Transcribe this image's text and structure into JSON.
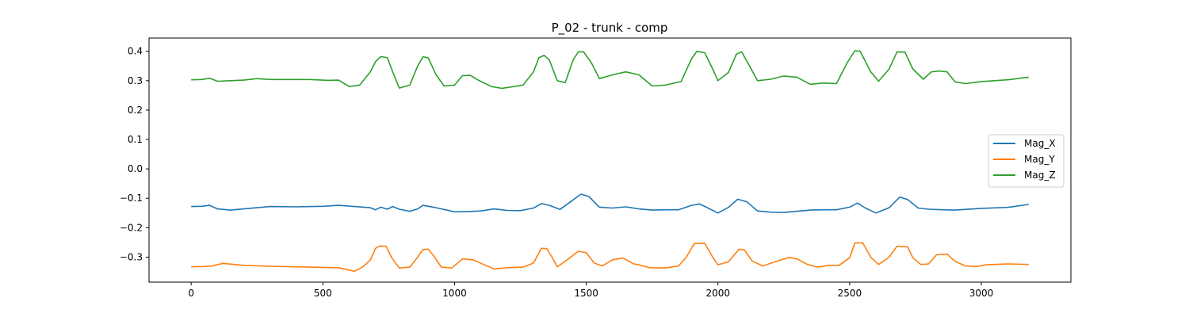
{
  "chart_data": {
    "type": "line",
    "title": "P_02 - trunk - comp",
    "xlabel": "",
    "ylabel": "",
    "xlim": [
      -160,
      3340
    ],
    "ylim": [
      -0.385,
      0.445
    ],
    "x_ticks": [
      0,
      500,
      1000,
      1500,
      2000,
      2500,
      3000
    ],
    "x_tick_labels": [
      "0",
      "500",
      "1000",
      "1500",
      "2000",
      "2500",
      "3000"
    ],
    "y_ticks": [
      -0.3,
      -0.2,
      -0.1,
      0.0,
      0.1,
      0.2,
      0.3,
      0.4
    ],
    "y_tick_labels": [
      "−0.3",
      "−0.2",
      "−0.1",
      "0.0",
      "0.1",
      "0.2",
      "0.3",
      "0.4"
    ],
    "grid": false,
    "legend_position": "center-right",
    "series": [
      {
        "name": "Mag_X",
        "color": "#1f77b4",
        "points": [
          [
            0,
            -0.128
          ],
          [
            40,
            -0.127
          ],
          [
            70,
            -0.124
          ],
          [
            100,
            -0.136
          ],
          [
            150,
            -0.14
          ],
          [
            200,
            -0.136
          ],
          [
            300,
            -0.128
          ],
          [
            400,
            -0.129
          ],
          [
            500,
            -0.127
          ],
          [
            560,
            -0.124
          ],
          [
            620,
            -0.128
          ],
          [
            680,
            -0.132
          ],
          [
            700,
            -0.139
          ],
          [
            720,
            -0.13
          ],
          [
            745,
            -0.137
          ],
          [
            765,
            -0.128
          ],
          [
            790,
            -0.137
          ],
          [
            830,
            -0.144
          ],
          [
            860,
            -0.136
          ],
          [
            880,
            -0.124
          ],
          [
            920,
            -0.13
          ],
          [
            1000,
            -0.146
          ],
          [
            1050,
            -0.145
          ],
          [
            1100,
            -0.143
          ],
          [
            1150,
            -0.136
          ],
          [
            1200,
            -0.141
          ],
          [
            1250,
            -0.142
          ],
          [
            1300,
            -0.133
          ],
          [
            1330,
            -0.118
          ],
          [
            1360,
            -0.124
          ],
          [
            1400,
            -0.138
          ],
          [
            1440,
            -0.112
          ],
          [
            1480,
            -0.086
          ],
          [
            1510,
            -0.094
          ],
          [
            1550,
            -0.13
          ],
          [
            1600,
            -0.133
          ],
          [
            1650,
            -0.129
          ],
          [
            1700,
            -0.136
          ],
          [
            1750,
            -0.14
          ],
          [
            1800,
            -0.139
          ],
          [
            1850,
            -0.139
          ],
          [
            1900,
            -0.124
          ],
          [
            1930,
            -0.119
          ],
          [
            1960,
            -0.132
          ],
          [
            2000,
            -0.15
          ],
          [
            2040,
            -0.131
          ],
          [
            2075,
            -0.103
          ],
          [
            2110,
            -0.112
          ],
          [
            2150,
            -0.143
          ],
          [
            2200,
            -0.147
          ],
          [
            2250,
            -0.148
          ],
          [
            2300,
            -0.144
          ],
          [
            2350,
            -0.14
          ],
          [
            2400,
            -0.139
          ],
          [
            2450,
            -0.139
          ],
          [
            2500,
            -0.13
          ],
          [
            2530,
            -0.116
          ],
          [
            2560,
            -0.133
          ],
          [
            2600,
            -0.15
          ],
          [
            2650,
            -0.132
          ],
          [
            2690,
            -0.096
          ],
          [
            2720,
            -0.104
          ],
          [
            2760,
            -0.133
          ],
          [
            2800,
            -0.137
          ],
          [
            2850,
            -0.139
          ],
          [
            2900,
            -0.14
          ],
          [
            3000,
            -0.134
          ],
          [
            3100,
            -0.131
          ],
          [
            3180,
            -0.121
          ]
        ]
      },
      {
        "name": "Mag_Y",
        "color": "#ff7f0e",
        "points": [
          [
            0,
            -0.333
          ],
          [
            50,
            -0.332
          ],
          [
            80,
            -0.33
          ],
          [
            120,
            -0.321
          ],
          [
            200,
            -0.328
          ],
          [
            300,
            -0.331
          ],
          [
            400,
            -0.333
          ],
          [
            500,
            -0.335
          ],
          [
            560,
            -0.336
          ],
          [
            620,
            -0.348
          ],
          [
            650,
            -0.334
          ],
          [
            680,
            -0.31
          ],
          [
            700,
            -0.27
          ],
          [
            715,
            -0.262
          ],
          [
            740,
            -0.263
          ],
          [
            760,
            -0.3
          ],
          [
            790,
            -0.337
          ],
          [
            830,
            -0.334
          ],
          [
            860,
            -0.3
          ],
          [
            880,
            -0.274
          ],
          [
            900,
            -0.273
          ],
          [
            920,
            -0.295
          ],
          [
            950,
            -0.334
          ],
          [
            990,
            -0.337
          ],
          [
            1030,
            -0.306
          ],
          [
            1070,
            -0.309
          ],
          [
            1110,
            -0.325
          ],
          [
            1150,
            -0.34
          ],
          [
            1200,
            -0.336
          ],
          [
            1260,
            -0.334
          ],
          [
            1300,
            -0.32
          ],
          [
            1330,
            -0.27
          ],
          [
            1350,
            -0.271
          ],
          [
            1370,
            -0.3
          ],
          [
            1390,
            -0.333
          ],
          [
            1430,
            -0.308
          ],
          [
            1470,
            -0.28
          ],
          [
            1500,
            -0.285
          ],
          [
            1530,
            -0.32
          ],
          [
            1560,
            -0.33
          ],
          [
            1600,
            -0.309
          ],
          [
            1640,
            -0.303
          ],
          [
            1680,
            -0.323
          ],
          [
            1700,
            -0.326
          ],
          [
            1740,
            -0.336
          ],
          [
            1800,
            -0.337
          ],
          [
            1850,
            -0.33
          ],
          [
            1880,
            -0.3
          ],
          [
            1910,
            -0.254
          ],
          [
            1950,
            -0.253
          ],
          [
            1980,
            -0.3
          ],
          [
            2000,
            -0.326
          ],
          [
            2040,
            -0.316
          ],
          [
            2080,
            -0.273
          ],
          [
            2100,
            -0.275
          ],
          [
            2130,
            -0.313
          ],
          [
            2170,
            -0.33
          ],
          [
            2220,
            -0.315
          ],
          [
            2270,
            -0.301
          ],
          [
            2300,
            -0.306
          ],
          [
            2340,
            -0.325
          ],
          [
            2380,
            -0.334
          ],
          [
            2420,
            -0.328
          ],
          [
            2460,
            -0.328
          ],
          [
            2500,
            -0.302
          ],
          [
            2520,
            -0.252
          ],
          [
            2550,
            -0.252
          ],
          [
            2580,
            -0.3
          ],
          [
            2610,
            -0.325
          ],
          [
            2650,
            -0.3
          ],
          [
            2680,
            -0.263
          ],
          [
            2720,
            -0.265
          ],
          [
            2740,
            -0.302
          ],
          [
            2770,
            -0.325
          ],
          [
            2800,
            -0.323
          ],
          [
            2830,
            -0.292
          ],
          [
            2870,
            -0.29
          ],
          [
            2900,
            -0.314
          ],
          [
            2940,
            -0.33
          ],
          [
            2980,
            -0.332
          ],
          [
            3020,
            -0.326
          ],
          [
            3100,
            -0.323
          ],
          [
            3180,
            -0.325
          ]
        ]
      },
      {
        "name": "Mag_Z",
        "color": "#2ca02c",
        "points": [
          [
            0,
            0.303
          ],
          [
            40,
            0.304
          ],
          [
            70,
            0.308
          ],
          [
            100,
            0.298
          ],
          [
            150,
            0.3
          ],
          [
            200,
            0.302
          ],
          [
            250,
            0.307
          ],
          [
            300,
            0.304
          ],
          [
            350,
            0.304
          ],
          [
            450,
            0.304
          ],
          [
            520,
            0.301
          ],
          [
            560,
            0.302
          ],
          [
            600,
            0.28
          ],
          [
            640,
            0.285
          ],
          [
            680,
            0.33
          ],
          [
            700,
            0.365
          ],
          [
            720,
            0.382
          ],
          [
            745,
            0.378
          ],
          [
            765,
            0.33
          ],
          [
            790,
            0.275
          ],
          [
            830,
            0.285
          ],
          [
            860,
            0.35
          ],
          [
            880,
            0.381
          ],
          [
            900,
            0.378
          ],
          [
            930,
            0.32
          ],
          [
            960,
            0.282
          ],
          [
            1000,
            0.285
          ],
          [
            1030,
            0.317
          ],
          [
            1060,
            0.318
          ],
          [
            1090,
            0.302
          ],
          [
            1140,
            0.28
          ],
          [
            1180,
            0.274
          ],
          [
            1260,
            0.285
          ],
          [
            1300,
            0.33
          ],
          [
            1320,
            0.378
          ],
          [
            1340,
            0.386
          ],
          [
            1360,
            0.37
          ],
          [
            1390,
            0.3
          ],
          [
            1420,
            0.293
          ],
          [
            1450,
            0.37
          ],
          [
            1470,
            0.398
          ],
          [
            1490,
            0.398
          ],
          [
            1520,
            0.36
          ],
          [
            1550,
            0.307
          ],
          [
            1600,
            0.32
          ],
          [
            1650,
            0.33
          ],
          [
            1700,
            0.32
          ],
          [
            1750,
            0.282
          ],
          [
            1800,
            0.285
          ],
          [
            1860,
            0.297
          ],
          [
            1900,
            0.375
          ],
          [
            1920,
            0.4
          ],
          [
            1950,
            0.395
          ],
          [
            1980,
            0.34
          ],
          [
            2000,
            0.3
          ],
          [
            2040,
            0.328
          ],
          [
            2070,
            0.39
          ],
          [
            2090,
            0.398
          ],
          [
            2120,
            0.35
          ],
          [
            2150,
            0.3
          ],
          [
            2200,
            0.305
          ],
          [
            2250,
            0.316
          ],
          [
            2300,
            0.312
          ],
          [
            2350,
            0.288
          ],
          [
            2400,
            0.292
          ],
          [
            2450,
            0.29
          ],
          [
            2490,
            0.36
          ],
          [
            2520,
            0.402
          ],
          [
            2540,
            0.4
          ],
          [
            2580,
            0.33
          ],
          [
            2610,
            0.298
          ],
          [
            2650,
            0.34
          ],
          [
            2680,
            0.398
          ],
          [
            2710,
            0.397
          ],
          [
            2740,
            0.34
          ],
          [
            2780,
            0.305
          ],
          [
            2810,
            0.33
          ],
          [
            2840,
            0.333
          ],
          [
            2870,
            0.33
          ],
          [
            2900,
            0.296
          ],
          [
            2940,
            0.29
          ],
          [
            3000,
            0.297
          ],
          [
            3100,
            0.303
          ],
          [
            3180,
            0.312
          ]
        ]
      }
    ]
  }
}
